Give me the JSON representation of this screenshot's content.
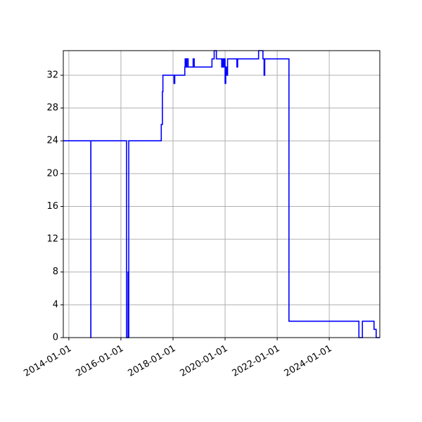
{
  "chart_data": {
    "type": "line",
    "title": "",
    "xlabel": "",
    "ylabel": "",
    "x_axis_type": "date",
    "xlim": [
      "2013-10-15",
      "2025-12-10"
    ],
    "ylim": [
      0,
      35
    ],
    "grid": true,
    "x_ticks": [
      "2014-01-01",
      "2016-01-01",
      "2018-01-01",
      "2020-01-01",
      "2022-01-01",
      "2024-01-01"
    ],
    "y_ticks": [
      0,
      4,
      8,
      12,
      16,
      20,
      24,
      28,
      32
    ],
    "series": [
      {
        "color": "#0000ff",
        "points": [
          [
            "2013-10-15",
            24
          ],
          [
            "2014-11-05",
            24
          ],
          [
            "2014-11-05",
            0
          ],
          [
            "2014-11-06",
            0
          ],
          [
            "2014-11-06",
            24
          ],
          [
            "2016-03-20",
            24
          ],
          [
            "2016-03-20",
            0
          ],
          [
            "2016-04-10",
            0
          ],
          [
            "2016-04-10",
            8
          ],
          [
            "2016-04-12",
            8
          ],
          [
            "2016-04-12",
            0
          ],
          [
            "2016-04-20",
            0
          ],
          [
            "2016-04-20",
            24
          ],
          [
            "2017-07-20",
            24
          ],
          [
            "2017-07-20",
            26
          ],
          [
            "2017-08-05",
            26
          ],
          [
            "2017-08-05",
            30
          ],
          [
            "2017-08-12",
            30
          ],
          [
            "2017-08-12",
            32
          ],
          [
            "2018-01-15",
            32
          ],
          [
            "2018-01-15",
            31
          ],
          [
            "2018-01-25",
            31
          ],
          [
            "2018-01-25",
            32
          ],
          [
            "2018-06-15",
            32
          ],
          [
            "2018-06-15",
            33
          ],
          [
            "2018-06-20",
            33
          ],
          [
            "2018-06-20",
            34
          ],
          [
            "2018-07-05",
            34
          ],
          [
            "2018-07-05",
            33
          ],
          [
            "2018-07-15",
            33
          ],
          [
            "2018-07-15",
            34
          ],
          [
            "2018-08-01",
            34
          ],
          [
            "2018-08-01",
            33
          ],
          [
            "2018-10-10",
            33
          ],
          [
            "2018-10-10",
            34
          ],
          [
            "2018-10-25",
            34
          ],
          [
            "2018-10-25",
            33
          ],
          [
            "2019-07-01",
            33
          ],
          [
            "2019-07-01",
            34
          ],
          [
            "2019-08-01",
            34
          ],
          [
            "2019-08-01",
            35
          ],
          [
            "2019-09-01",
            35
          ],
          [
            "2019-09-01",
            34
          ],
          [
            "2019-11-15",
            34
          ],
          [
            "2019-11-15",
            33
          ],
          [
            "2019-12-01",
            33
          ],
          [
            "2019-12-01",
            34
          ],
          [
            "2019-12-10",
            34
          ],
          [
            "2019-12-10",
            33
          ],
          [
            "2019-12-25",
            33
          ],
          [
            "2019-12-25",
            34
          ],
          [
            "2020-01-01",
            34
          ],
          [
            "2020-01-01",
            31
          ],
          [
            "2020-01-10",
            31
          ],
          [
            "2020-01-10",
            33
          ],
          [
            "2020-01-25",
            33
          ],
          [
            "2020-01-25",
            32
          ],
          [
            "2020-02-05",
            32
          ],
          [
            "2020-02-05",
            34
          ],
          [
            "2020-06-15",
            34
          ],
          [
            "2020-06-15",
            33
          ],
          [
            "2020-06-25",
            33
          ],
          [
            "2020-06-25",
            34
          ],
          [
            "2021-04-15",
            34
          ],
          [
            "2021-04-15",
            35
          ],
          [
            "2021-06-15",
            35
          ],
          [
            "2021-06-15",
            34
          ],
          [
            "2021-07-01",
            34
          ],
          [
            "2021-07-01",
            32
          ],
          [
            "2021-07-10",
            32
          ],
          [
            "2021-07-10",
            34
          ],
          [
            "2022-06-15",
            34
          ],
          [
            "2022-06-15",
            2
          ],
          [
            "2025-02-20",
            2
          ],
          [
            "2025-02-20",
            0
          ],
          [
            "2025-04-10",
            0
          ],
          [
            "2025-04-10",
            2
          ],
          [
            "2025-09-20",
            2
          ],
          [
            "2025-09-20",
            1
          ],
          [
            "2025-10-20",
            1
          ],
          [
            "2025-10-20",
            0
          ],
          [
            "2025-12-10",
            0
          ]
        ]
      }
    ]
  }
}
